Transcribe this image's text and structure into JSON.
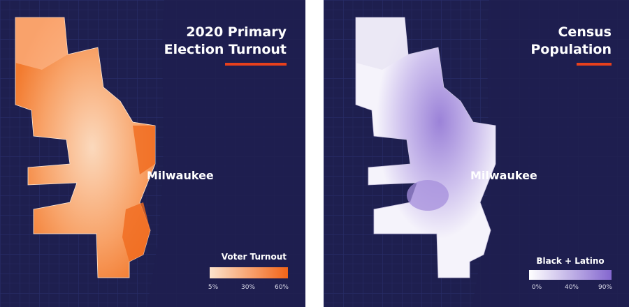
{
  "panels": [
    {
      "title": [
        "2020 Primary",
        "Election Turnout"
      ],
      "city": "Milwaukee",
      "legend": {
        "title": "Voter Turnout",
        "ticks": [
          "5%",
          "30%",
          "60%"
        ]
      }
    },
    {
      "title": [
        "Census",
        "Population"
      ],
      "city": "Milwaukee",
      "legend": {
        "title": "Black + Latino",
        "ticks": [
          "0%",
          "40%",
          "90%"
        ]
      }
    }
  ]
}
